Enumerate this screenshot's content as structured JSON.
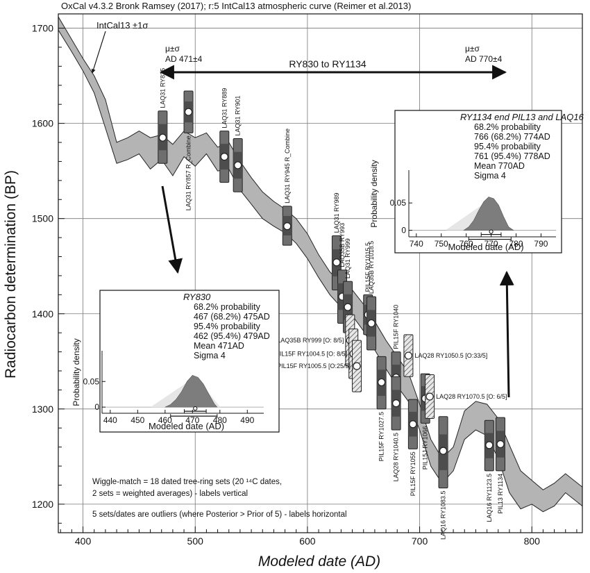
{
  "chart_data": {
    "type": "scatter",
    "title": "OxCal v4.3.2 Bronk Ramsey (2017); r:5 IntCal13 atmospheric curve (Reimer et al.2013)",
    "xlabel": "Modeled date (AD)",
    "ylabel": "Radiocarbon determination (BP)",
    "xlim": [
      378,
      845
    ],
    "ylim": [
      1170,
      1715
    ],
    "x_ticks": [
      400,
      500,
      600,
      700,
      800
    ],
    "y_ticks": [
      1200,
      1300,
      1400,
      1500,
      1600,
      1700
    ],
    "grid": true,
    "curve": {
      "label": "IntCal13 ±1σ",
      "x": [
        378,
        390,
        400,
        410,
        420,
        430,
        440,
        450,
        460,
        470,
        480,
        490,
        500,
        510,
        520,
        530,
        540,
        550,
        560,
        570,
        580,
        590,
        600,
        610,
        620,
        630,
        640,
        650,
        660,
        670,
        680,
        690,
        700,
        710,
        720,
        730,
        740,
        750,
        760,
        770,
        780,
        790,
        800,
        810,
        820,
        830,
        845
      ],
      "upper": [
        1712,
        1688,
        1668,
        1650,
        1625,
        1580,
        1585,
        1592,
        1585,
        1588,
        1578,
        1592,
        1585,
        1590,
        1575,
        1580,
        1560,
        1543,
        1528,
        1518,
        1510,
        1500,
        1484,
        1462,
        1444,
        1432,
        1425,
        1410,
        1392,
        1372,
        1355,
        1338,
        1305,
        1268,
        1248,
        1260,
        1298,
        1308,
        1305,
        1290,
        1262,
        1235,
        1225,
        1215,
        1222,
        1232,
        1218
      ],
      "lower": [
        1698,
        1675,
        1655,
        1632,
        1595,
        1558,
        1562,
        1568,
        1552,
        1562,
        1545,
        1565,
        1555,
        1568,
        1550,
        1552,
        1530,
        1515,
        1500,
        1492,
        1485,
        1474,
        1458,
        1438,
        1420,
        1407,
        1398,
        1382,
        1362,
        1342,
        1324,
        1308,
        1278,
        1240,
        1222,
        1235,
        1268,
        1278,
        1272,
        1248,
        1212,
        1195,
        1200,
        1192,
        1198,
        1212,
        1198
      ]
    },
    "samples": [
      {
        "label": "LAQ31 RY835",
        "x": 471,
        "y": 1585,
        "y1": 1558,
        "y2": 1613,
        "style": "solid",
        "label_dir": "v-up"
      },
      {
        "label": "LAQ31 RY857 R_Combine",
        "x": 494,
        "y": 1612,
        "y1": 1590,
        "y2": 1634,
        "style": "solid",
        "label_dir": "v-down"
      },
      {
        "label": "LAQ31 RY889",
        "x": 526,
        "y": 1565,
        "y1": 1538,
        "y2": 1592,
        "style": "solid",
        "label_dir": "v-up"
      },
      {
        "label": "LAQ31 RY901",
        "x": 538,
        "y": 1556,
        "y1": 1528,
        "y2": 1584,
        "style": "solid",
        "label_dir": "v-up"
      },
      {
        "label": "LAQ31 RY945 R_Combine",
        "x": 582,
        "y": 1492,
        "y1": 1472,
        "y2": 1513,
        "style": "solid",
        "label_dir": "v-up"
      },
      {
        "label": "LAQ31 RY989",
        "x": 626,
        "y": 1454,
        "y1": 1425,
        "y2": 1482,
        "style": "solid",
        "label_dir": "v-up"
      },
      {
        "label": "LAQ35B RY993",
        "x": 631,
        "y": 1418,
        "y1": 1390,
        "y2": 1446,
        "style": "solid",
        "label_dir": "v-up"
      },
      {
        "label": "LAQ31 RY999",
        "x": 636,
        "y": 1407,
        "y1": 1380,
        "y2": 1434,
        "style": "solid",
        "label_dir": "v-up"
      },
      {
        "label": "LAQ35B RY999 [O: 8/5]",
        "x": 638,
        "y": 1372,
        "y1": 1345,
        "y2": 1399,
        "style": "hatched",
        "label_dir": "h-left"
      },
      {
        "label": "PIL15F RY1004.5 [O: 8/5]",
        "x": 641,
        "y": 1358,
        "y1": 1332,
        "y2": 1384,
        "style": "hatched",
        "label_dir": "h-left"
      },
      {
        "label": "PIL15F RY1005.5 [O:25/5]",
        "x": 644,
        "y": 1345,
        "y1": 1318,
        "y2": 1372,
        "style": "hatched",
        "label_dir": "h-left"
      },
      {
        "label": "PIL15F RY1015.5",
        "x": 654,
        "y": 1399,
        "y1": 1378,
        "y2": 1420,
        "style": "solid",
        "label_dir": "v-up"
      },
      {
        "label": "LAQ35B RY1018.5",
        "x": 657,
        "y": 1390,
        "y1": 1362,
        "y2": 1418,
        "style": "solid",
        "label_dir": "v-up"
      },
      {
        "label": "PIL15F RY1027.5",
        "x": 666,
        "y": 1328,
        "y1": 1300,
        "y2": 1355,
        "style": "solid",
        "label_dir": "v-down"
      },
      {
        "label": "PIL15F RY1040",
        "x": 679,
        "y": 1333,
        "y1": 1306,
        "y2": 1360,
        "style": "solid",
        "label_dir": "v-up"
      },
      {
        "label": "LAQ28 RY1040.5",
        "x": 679,
        "y": 1306,
        "y1": 1278,
        "y2": 1334,
        "style": "solid",
        "label_dir": "v-down"
      },
      {
        "label": "LAQ28 RY1050.5 [O:33/5]",
        "x": 690,
        "y": 1356,
        "y1": 1334,
        "y2": 1378,
        "style": "hatched",
        "label_dir": "h-right"
      },
      {
        "label": "PIL15F RY1055",
        "x": 694,
        "y": 1284,
        "y1": 1258,
        "y2": 1310,
        "style": "solid",
        "label_dir": "v-down"
      },
      {
        "label": "PIL15J RY1066",
        "x": 705,
        "y": 1311,
        "y1": 1285,
        "y2": 1337,
        "style": "solid",
        "label_dir": "v-down"
      },
      {
        "label": "LAQ28 RY1070.5 [O: 6/5]",
        "x": 709,
        "y": 1313,
        "y1": 1290,
        "y2": 1336,
        "style": "hatched",
        "label_dir": "h-right"
      },
      {
        "label": "LAQ16 RY1083.5",
        "x": 721,
        "y": 1256,
        "y1": 1217,
        "y2": 1292,
        "style": "solid",
        "label_dir": "v-down"
      },
      {
        "label": "LAQ16 RY1123.5",
        "x": 762,
        "y": 1262,
        "y1": 1235,
        "y2": 1288,
        "style": "solid",
        "label_dir": "v-down"
      },
      {
        "label": "PIL13 RY1134",
        "x": 772,
        "y": 1263,
        "y1": 1235,
        "y2": 1291,
        "style": "solid",
        "label_dir": "v-down"
      }
    ],
    "annotations": {
      "curve_label": "IntCal13 ±1σ",
      "span_label": "RY830 to RY1134",
      "left_mu_sigma": "μ±σ",
      "left_value": "AD  471±4",
      "right_mu_sigma": "μ±σ",
      "right_value": "AD  770±4",
      "note1_line1": "Wiggle-match = 18 dated tree-ring sets (20 ¹⁴C dates,",
      "note1_line2": "2 sets = weighted averages) - labels vertical",
      "note2": "5 sets/dates are outliers (where Posterior > Prior of 5) - labels horizontal"
    },
    "insets": [
      {
        "title": "RY830",
        "lines": [
          "68.2% probability",
          "467 (68.2%) 475AD",
          "95.4% probability",
          "462 (95.4%) 479AD",
          "Mean 471AD",
          "Sigma 4"
        ],
        "xlabel": "Modeled date (AD)",
        "ylabel": "Probability density",
        "xlim": [
          437,
          496
        ],
        "x_ticks": [
          440,
          450,
          460,
          470,
          480,
          490
        ],
        "ylim": [
          -0.012,
          0.11
        ],
        "y_ticks": [
          0,
          0.05
        ],
        "prior_x": [
          455,
          471,
          480
        ],
        "prior_y": [
          0.001,
          0.059,
          0.001
        ],
        "post_x": [
          460,
          462,
          464,
          466,
          468,
          470,
          472,
          474,
          476,
          478,
          479
        ],
        "post_y": [
          0,
          0.005,
          0.015,
          0.03,
          0.05,
          0.062,
          0.058,
          0.045,
          0.025,
          0.006,
          0
        ],
        "range68": [
          467,
          475
        ],
        "range95": [
          462,
          479
        ],
        "mean": 471
      },
      {
        "title": "RY1134 end PIL13  and LAQ16",
        "lines": [
          "68.2% probability",
          "766 (68.2%) 774AD",
          "95.4% probability",
          "761 (95.4%) 778AD",
          "Mean 770AD",
          "Sigma 4"
        ],
        "xlabel": "Modeled date (AD)",
        "ylabel": "Probability density",
        "xlim": [
          737,
          796
        ],
        "x_ticks": [
          740,
          750,
          760,
          770,
          780,
          790
        ],
        "ylim": [
          -0.012,
          0.11
        ],
        "y_ticks": [
          0,
          0.05
        ],
        "prior_x": [
          752,
          770,
          778
        ],
        "prior_y": [
          0.001,
          0.058,
          0.001
        ],
        "post_x": [
          759,
          761,
          763,
          765,
          767,
          769,
          771,
          773,
          775,
          777,
          779
        ],
        "post_y": [
          0,
          0.006,
          0.018,
          0.036,
          0.052,
          0.061,
          0.058,
          0.046,
          0.025,
          0.006,
          0
        ],
        "range68": [
          766,
          774
        ],
        "range95": [
          761,
          778
        ],
        "mean": 770
      }
    ]
  }
}
